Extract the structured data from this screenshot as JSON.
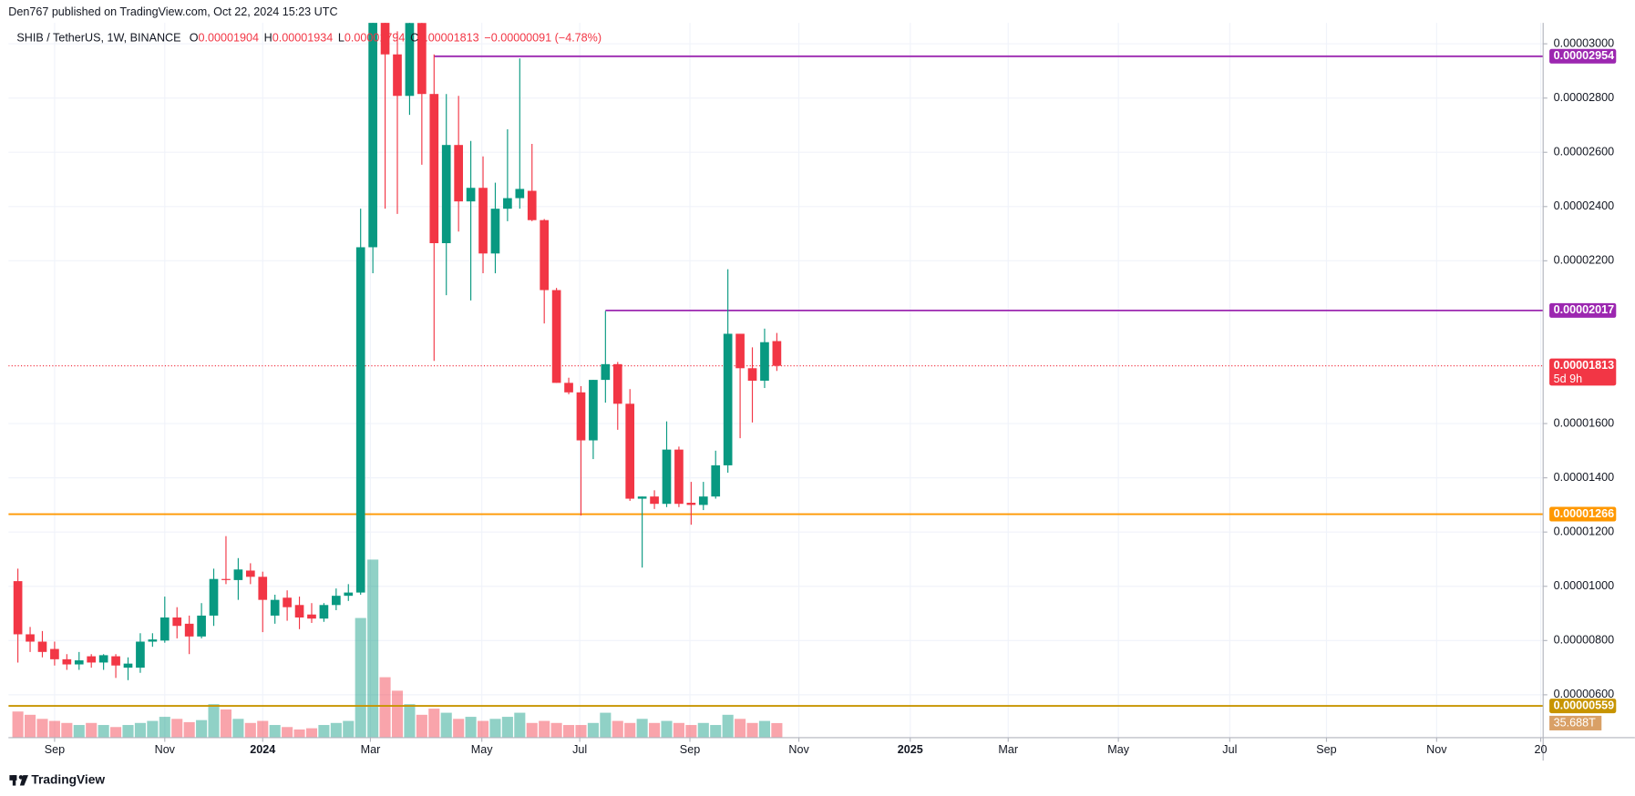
{
  "published": "Den767 published on TradingView.com, Oct 22, 2024 15:23 UTC",
  "footer": "TradingView",
  "chart_data": {
    "type": "candlestick",
    "title": "SHIB / TetherUS, 1W, BINANCE",
    "ohlc_legend": [
      {
        "key": "O",
        "text": "0.00001904"
      },
      {
        "key": "H",
        "text": "0.00001934"
      },
      {
        "key": "L",
        "text": "0.00001794"
      },
      {
        "key": "C",
        "text": "0.00001813"
      }
    ],
    "change": "−0.00000091 (−4.78%)",
    "open": [
      1.019e-05,
      8.23e-06,
      7.96e-06,
      7.69e-06,
      7.31e-06,
      7.12e-06,
      7.42e-06,
      7.19e-06,
      7.42e-06,
      7e-06,
      7e-06,
      7.96e-06,
      8e-06,
      8.85e-06,
      8.62e-06,
      8.15e-06,
      8.92e-06,
      1.027e-05,
      1.023e-05,
      1.058e-05,
      1.035e-05,
      8.92e-06,
      9.58e-06,
      9.31e-06,
      8.96e-06,
      8.81e-06,
      9.31e-06,
      9.65e-06,
      9.77e-06,
      2.25e-05,
      3.085e-05,
      2.961e-05,
      2.808e-05,
      3.077e-05,
      2.815e-05,
      2.265e-05,
      2.627e-05,
      2.419e-05,
      2.469e-05,
      2.227e-05,
      2.392e-05,
      2.431e-05,
      2.458e-05,
      2.35e-05,
      2.092e-05,
      1.75e-05,
      1.715e-05,
      1.538e-05,
      1.761e-05,
      1.819e-05,
      1.673e-05,
      1.323e-05,
      1.331e-05,
      1.304e-05,
      1.504e-05,
      1.308e-05,
      1.3e-05,
      1.331e-05,
      1.446e-05,
      1.931e-05,
      1.804e-05,
      1.758e-05,
      1.904e-05
    ],
    "high": [
      1.065e-05,
      8.5e-06,
      8.35e-06,
      7.96e-06,
      7.5e-06,
      7.58e-06,
      7.5e-06,
      7.5e-06,
      7.5e-06,
      7.38e-06,
      8.27e-06,
      8.27e-06,
      9.62e-06,
      9.23e-06,
      8.92e-06,
      9.38e-06,
      1.065e-05,
      1.185e-05,
      1.104e-05,
      1.085e-05,
      1.054e-05,
      9.69e-06,
      9.85e-06,
      9.62e-06,
      9.38e-06,
      9.38e-06,
      9.92e-06,
      1.008e-05,
      2.392e-05,
      3.2e-05,
      3.15e-05,
      3.046e-05,
      3.104e-05,
      3.104e-05,
      2.961e-05,
      2.815e-05,
      2.808e-05,
      2.642e-05,
      2.585e-05,
      2.488e-05,
      2.685e-05,
      2.946e-05,
      2.631e-05,
      2.354e-05,
      2.1e-05,
      1.769e-05,
      1.738e-05,
      1.761e-05,
      2.015e-05,
      1.827e-05,
      1.727e-05,
      1.331e-05,
      1.354e-05,
      1.608e-05,
      1.515e-05,
      1.385e-05,
      1.385e-05,
      1.5e-05,
      2.169e-05,
      1.931e-05,
      1.881e-05,
      1.95e-05,
      1.934e-05
    ],
    "low": [
      7.19e-06,
      7.58e-06,
      7.38e-06,
      7.08e-06,
      6.92e-06,
      6.92e-06,
      7e-06,
      6.92e-06,
      6.62e-06,
      6.54e-06,
      6.81e-06,
      7.77e-06,
      7.92e-06,
      8.08e-06,
      7.5e-06,
      8.08e-06,
      8.54e-06,
      1.008e-05,
      9.5e-06,
      1.008e-05,
      8.31e-06,
      8.62e-06,
      8.73e-06,
      8.42e-06,
      8.65e-06,
      8.69e-06,
      9.12e-06,
      9.46e-06,
      9.69e-06,
      2.154e-05,
      2.392e-05,
      2.373e-05,
      2.738e-05,
      2.554e-05,
      1.831e-05,
      2.073e-05,
      2.308e-05,
      2.054e-05,
      2.154e-05,
      2.154e-05,
      2.346e-05,
      2.392e-05,
      2.346e-05,
      1.969e-05,
      1.75e-05,
      1.708e-05,
      1.261e-05,
      1.469e-05,
      1.677e-05,
      1.577e-05,
      1.315e-05,
      1.069e-05,
      1.285e-05,
      1.292e-05,
      1.292e-05,
      1.227e-05,
      1.281e-05,
      1.323e-05,
      1.419e-05,
      1.546e-05,
      1.604e-05,
      1.731e-05,
      1.794e-05
    ],
    "close": [
      8.23e-06,
      7.96e-06,
      7.58e-06,
      7.31e-06,
      7.12e-06,
      7.27e-06,
      7.19e-06,
      7.46e-06,
      7.08e-06,
      7.15e-06,
      7.96e-06,
      8.04e-06,
      8.85e-06,
      8.54e-06,
      8.15e-06,
      8.92e-06,
      1.027e-05,
      1.023e-05,
      1.062e-05,
      1.035e-05,
      9.5e-06,
      9.5e-06,
      9.23e-06,
      8.85e-06,
      8.81e-06,
      9.31e-06,
      9.65e-06,
      9.77e-06,
      2.25e-05,
      3.1e-05,
      2.961e-05,
      2.808e-05,
      3.077e-05,
      2.815e-05,
      2.265e-05,
      2.627e-05,
      2.419e-05,
      2.469e-05,
      2.227e-05,
      2.392e-05,
      2.431e-05,
      2.465e-05,
      2.35e-05,
      2.092e-05,
      1.75e-05,
      1.715e-05,
      1.538e-05,
      1.761e-05,
      1.819e-05,
      1.673e-05,
      1.323e-05,
      1.331e-05,
      1.304e-05,
      1.504e-05,
      1.304e-05,
      1.3e-05,
      1.331e-05,
      1.446e-05,
      1.931e-05,
      1.804e-05,
      1.758e-05,
      1.9e-05,
      1.813e-05
    ],
    "volume": [
      64,
      56,
      46,
      41,
      36,
      31,
      36,
      31,
      26,
      31,
      36,
      41,
      51,
      46,
      38,
      43,
      82,
      69,
      46,
      36,
      41,
      31,
      26,
      20,
      23,
      31,
      36,
      41,
      293,
      436,
      148,
      115,
      82,
      56,
      71,
      61,
      46,
      51,
      41,
      46,
      51,
      61,
      36,
      41,
      36,
      31,
      31,
      36,
      61,
      41,
      36,
      46,
      36,
      41,
      36,
      31,
      36,
      31,
      56,
      46,
      36,
      41,
      35.688
    ],
    "volume_label": "35.688T",
    "up_color": "#089981",
    "down_color": "#f23645",
    "grid": true,
    "xlim": [
      -0.77,
      124.6
    ],
    "xticks": [
      {
        "value": 3,
        "label": "Sep"
      },
      {
        "value": 12,
        "label": "Nov"
      },
      {
        "value": 20,
        "label": "2024"
      },
      {
        "value": 28.8,
        "label": "Mar"
      },
      {
        "value": 37.9,
        "label": "May"
      },
      {
        "value": 45.9,
        "label": "Jul"
      },
      {
        "value": 54.9,
        "label": "Sep"
      },
      {
        "value": 63.8,
        "label": "Nov"
      },
      {
        "value": 72.9,
        "label": "2025"
      },
      {
        "value": 80.9,
        "label": "Mar"
      },
      {
        "value": 89.9,
        "label": "May"
      },
      {
        "value": 99,
        "label": "Jul"
      },
      {
        "value": 106.9,
        "label": "Sep"
      },
      {
        "value": 115.9,
        "label": "Nov"
      },
      {
        "value": 124.4,
        "label": "20"
      }
    ],
    "ylim": [
      4.42e-06,
      3.077e-05
    ],
    "yticks": [
      {
        "value": 3e-05,
        "label": "0.00003000"
      },
      {
        "value": 2.8e-05,
        "label": "0.00002800"
      },
      {
        "value": 2.6e-05,
        "label": "0.00002600"
      },
      {
        "value": 2.4e-05,
        "label": "0.00002400"
      },
      {
        "value": 2.2e-05,
        "label": "0.00002200"
      },
      {
        "value": 1.6e-05,
        "label": "0.00001600"
      },
      {
        "value": 1.4e-05,
        "label": "0.00001400"
      },
      {
        "value": 1.2e-05,
        "label": "0.00001200"
      },
      {
        "value": 1e-05,
        "label": "0.00001000"
      },
      {
        "value": 8e-06,
        "label": "0.00000800"
      },
      {
        "value": 6e-06,
        "label": "0.00000600"
      }
    ],
    "levels": [
      {
        "value": 2.954e-05,
        "label": "0.00002954",
        "color": "#9c27b0"
      },
      {
        "value": 2.017e-05,
        "label": "0.00002017",
        "color": "#9c27b0"
      },
      {
        "value": 1.266e-05,
        "label": "0.00001266",
        "color": "#ff9800"
      },
      {
        "value": 5.59e-06,
        "label": "0.00000559",
        "color": "#c79400"
      }
    ],
    "last_price": {
      "value": 1.813e-05,
      "label": "0.00001813",
      "countdown": "5d 9h",
      "color": "#f23645"
    }
  }
}
